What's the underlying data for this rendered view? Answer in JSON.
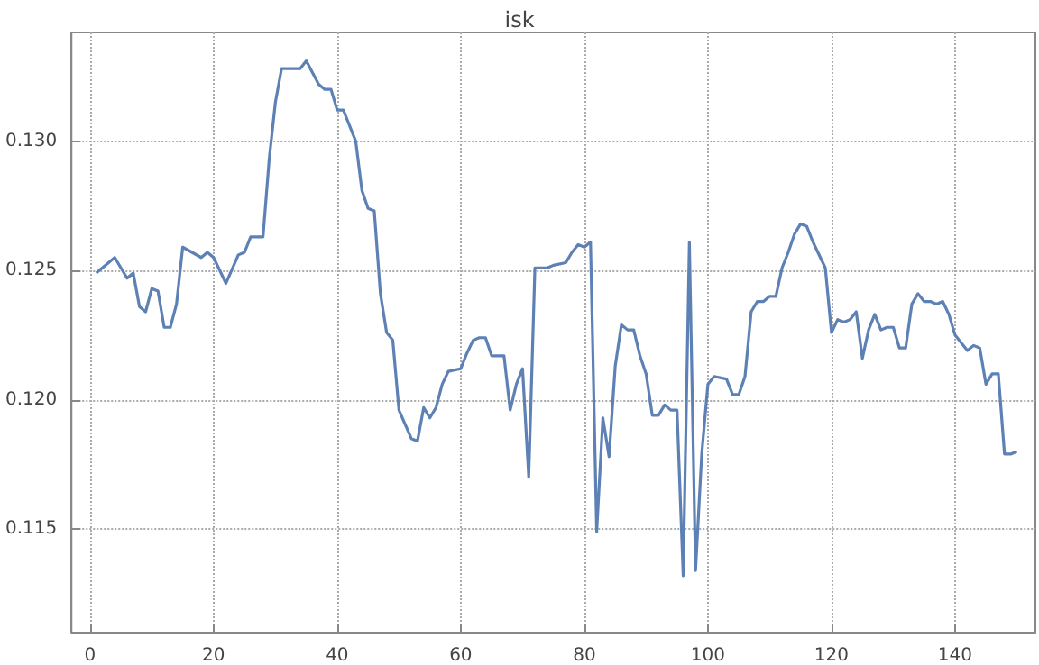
{
  "chart_data": {
    "type": "line",
    "title": "isk",
    "x": [
      1,
      3,
      4,
      6,
      7,
      8,
      9,
      10,
      11,
      12,
      13,
      14,
      15,
      18,
      19,
      20,
      22,
      24,
      25,
      26,
      28,
      29,
      30,
      31,
      33,
      34,
      35,
      37,
      38,
      39,
      40,
      41,
      43,
      44,
      45,
      46,
      47,
      48,
      49,
      50,
      52,
      53,
      54,
      55,
      56,
      57,
      58,
      60,
      61,
      62,
      63,
      64,
      65,
      67,
      68,
      69,
      70,
      71,
      72,
      74,
      75,
      77,
      78,
      79,
      80,
      81,
      82,
      83,
      84,
      85,
      86,
      87,
      88,
      89,
      90,
      91,
      92,
      93,
      94,
      95,
      96,
      97,
      98,
      99,
      100,
      101,
      103,
      104,
      105,
      106,
      107,
      108,
      109,
      110,
      111,
      112,
      113,
      114,
      115,
      116,
      117,
      119,
      120,
      121,
      122,
      123,
      124,
      125,
      126,
      127,
      128,
      129,
      130,
      131,
      132,
      133,
      134,
      135,
      136,
      137,
      138,
      139,
      140,
      141,
      142,
      143,
      144,
      145,
      146,
      147,
      148,
      149,
      150
    ],
    "series": [
      {
        "color": "#5e81b5",
        "values": [
          0.1249,
          0.1253,
          0.1255,
          0.1247,
          0.1249,
          0.1236,
          0.1234,
          0.1243,
          0.1242,
          0.1228,
          0.1228,
          0.1237,
          0.1259,
          0.1255,
          0.1257,
          0.1255,
          0.1245,
          0.1256,
          0.1257,
          0.1263,
          0.1263,
          0.1293,
          0.1315,
          0.1328,
          0.1328,
          0.1328,
          0.1331,
          0.1322,
          0.132,
          0.132,
          0.1312,
          0.1312,
          0.13,
          0.1281,
          0.1274,
          0.1273,
          0.1241,
          0.1226,
          0.1223,
          0.1196,
          0.1185,
          0.1184,
          0.1197,
          0.1193,
          0.1197,
          0.1206,
          0.1211,
          0.1212,
          0.1218,
          0.1223,
          0.1224,
          0.1224,
          0.1217,
          0.1217,
          0.1196,
          0.1206,
          0.1212,
          0.117,
          0.1251,
          0.1251,
          0.1252,
          0.1253,
          0.1257,
          0.126,
          0.1259,
          0.1261,
          0.1149,
          0.1193,
          0.1178,
          0.1213,
          0.1229,
          0.1227,
          0.1227,
          0.1217,
          0.121,
          0.1194,
          0.1194,
          0.1198,
          0.1196,
          0.1196,
          0.1132,
          0.1261,
          0.1134,
          0.1179,
          0.1206,
          0.1209,
          0.1208,
          0.1202,
          0.1202,
          0.1209,
          0.1234,
          0.1238,
          0.1238,
          0.124,
          0.124,
          0.1251,
          0.1257,
          0.1264,
          0.1268,
          0.1267,
          0.1261,
          0.1251,
          0.1226,
          0.1231,
          0.123,
          0.1231,
          0.1234,
          0.1216,
          0.1227,
          0.1233,
          0.1227,
          0.1228,
          0.1228,
          0.122,
          0.122,
          0.1237,
          0.1241,
          0.1238,
          0.1238,
          0.1237,
          0.1238,
          0.1233,
          0.1225,
          0.1222,
          0.1219,
          0.1221,
          0.122,
          0.1206,
          0.121,
          0.121,
          0.1179,
          0.1179,
          0.118
        ]
      }
    ],
    "xlim": [
      -3,
      153
    ],
    "xticks": [
      0,
      20,
      40,
      60,
      80,
      100,
      120,
      140
    ],
    "ylim": [
      0.111,
      0.1342
    ],
    "yticks": [
      0.115,
      {
        "value": 0.12,
        "label": "0.120"
      },
      0.125,
      {
        "value": 0.13,
        "label": "0.130"
      }
    ],
    "grid": true,
    "marker": "none",
    "line_style": "solid"
  }
}
